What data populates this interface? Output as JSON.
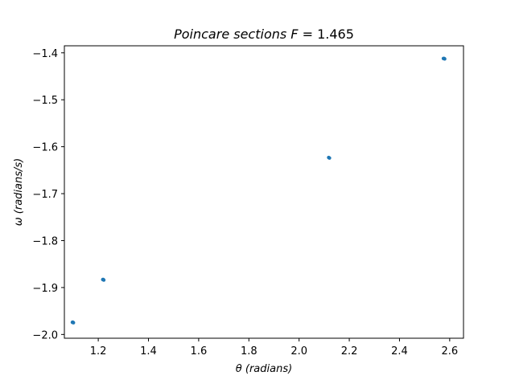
{
  "chart_data": {
    "type": "scatter",
    "title": "Poincare sections F = 1.465",
    "title_parts": {
      "italic": "Poincare sections ",
      "var": "F",
      "rest": " = 1.465"
    },
    "xlabel": "θ (radians)",
    "ylabel": "ω (radians/s)",
    "xlim": [
      1.065,
      2.655
    ],
    "ylim": [
      -2.008,
      -1.385
    ],
    "xticks": [
      1.2,
      1.4,
      1.6,
      1.8,
      2.0,
      2.2,
      2.4,
      2.6
    ],
    "xtick_labels": [
      "1.2",
      "1.4",
      "1.6",
      "1.8",
      "2.0",
      "2.2",
      "2.4",
      "2.6"
    ],
    "yticks": [
      -2.0,
      -1.9,
      -1.8,
      -1.7,
      -1.6,
      -1.5,
      -1.4
    ],
    "ytick_labels": [
      "−2.0",
      "−1.9",
      "−1.8",
      "−1.7",
      "−1.6",
      "−1.5",
      "−1.4"
    ],
    "grid": false,
    "marker_color": "#1f77b4",
    "series": [
      {
        "x": [
          1.097,
          1.099,
          1.101,
          1.218,
          1.22,
          1.222,
          2.118,
          2.121,
          2.575,
          2.578,
          2.58
        ],
        "y": [
          -1.974,
          -1.974,
          -1.975,
          -1.883,
          -1.883,
          -1.884,
          -1.623,
          -1.624,
          -1.412,
          -1.412,
          -1.413
        ]
      }
    ]
  }
}
